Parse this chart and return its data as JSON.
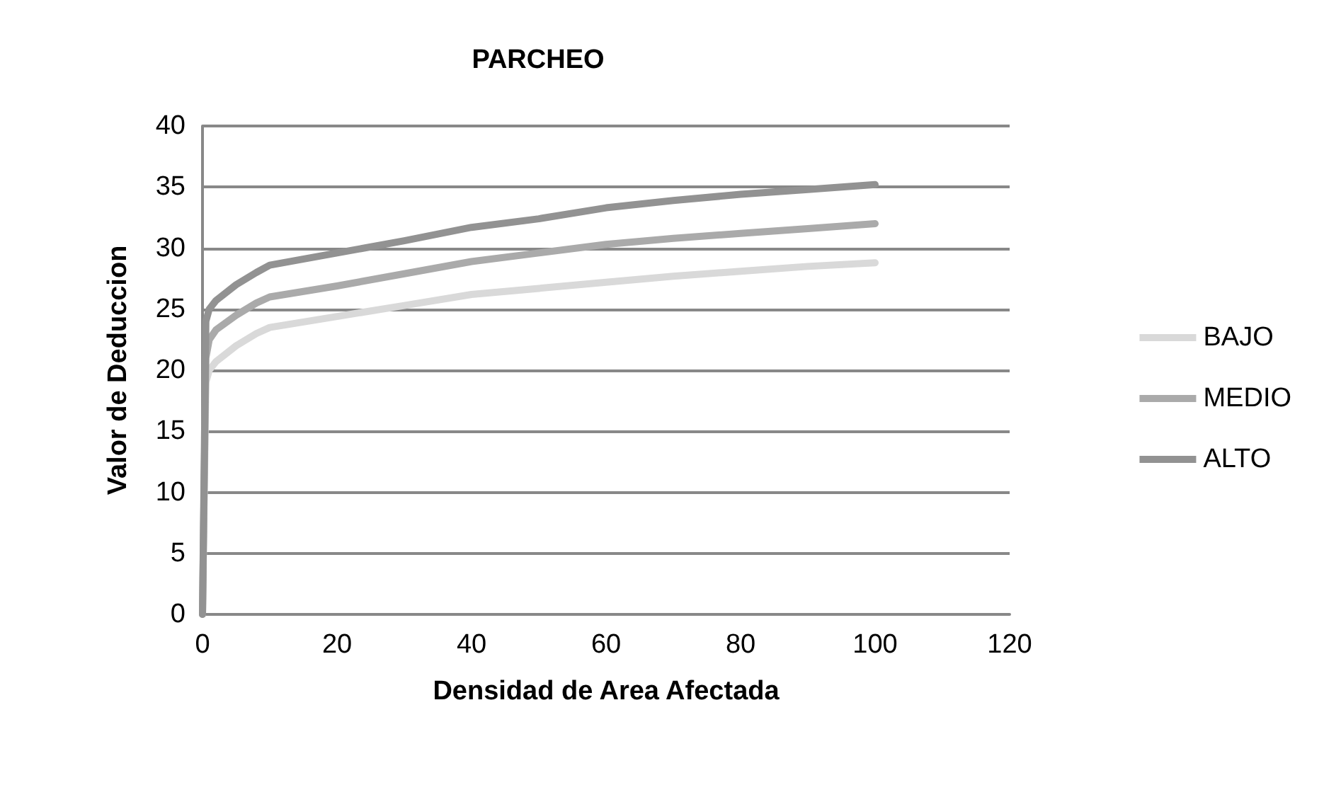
{
  "chart_data": {
    "type": "line",
    "title": "PARCHEO",
    "xlabel": "Densidad de Area Afectada",
    "ylabel": "Valor de Deduccion",
    "x": [
      0,
      0.5,
      1,
      2,
      5,
      8,
      10,
      20,
      30,
      40,
      50,
      60,
      70,
      80,
      90,
      100
    ],
    "series": [
      {
        "name": "BAJO",
        "color": "#d9d9d9",
        "values": [
          0,
          19,
          20,
          20.7,
          22,
          23,
          23.5,
          24.4,
          25.3,
          26.2,
          26.7,
          27.2,
          27.7,
          28.1,
          28.5,
          28.8
        ]
      },
      {
        "name": "MEDIO",
        "color": "#aaaaaa",
        "values": [
          0,
          21,
          22.5,
          23.3,
          24.5,
          25.5,
          26,
          26.9,
          27.9,
          28.9,
          29.6,
          30.3,
          30.8,
          31.2,
          31.6,
          32
        ]
      },
      {
        "name": "ALTO",
        "color": "#929292",
        "values": [
          0,
          24,
          25,
          25.7,
          27,
          28,
          28.6,
          29.6,
          30.6,
          31.7,
          32.4,
          33.3,
          33.9,
          34.4,
          34.8,
          35.2
        ]
      }
    ],
    "xlim": [
      0,
      120
    ],
    "xticks": [
      0,
      20,
      40,
      60,
      80,
      100,
      120
    ],
    "ylim": [
      0,
      40
    ],
    "yticks": [
      0,
      5,
      10,
      15,
      20,
      25,
      30,
      35,
      40
    ],
    "grid": "y",
    "legend": "right",
    "marker": "none",
    "line_style": "solid"
  }
}
